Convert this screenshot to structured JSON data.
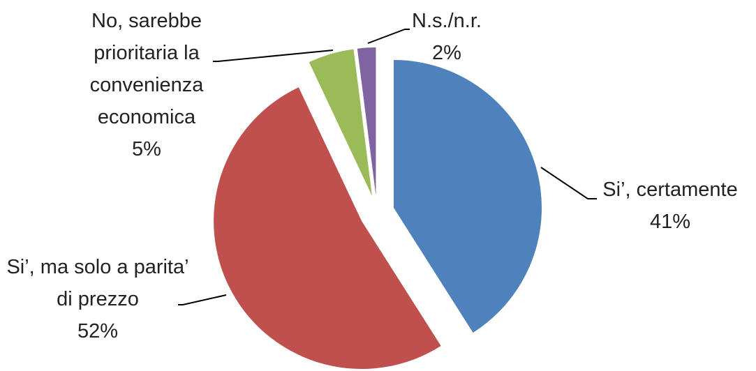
{
  "chart_data": {
    "type": "pie",
    "categories": [
      "Si’, certamente",
      "Si’, ma solo a parita’ di prezzo",
      "No, sarebbe prioritaria la convenienza economica",
      "N.s./n.r."
    ],
    "values": [
      41,
      52,
      5,
      2
    ],
    "value_labels": [
      "41%",
      "52%",
      "5%",
      "2%"
    ],
    "colors": [
      "#4f81bd",
      "#c0504d",
      "#9bbb59",
      "#8064a2"
    ]
  }
}
